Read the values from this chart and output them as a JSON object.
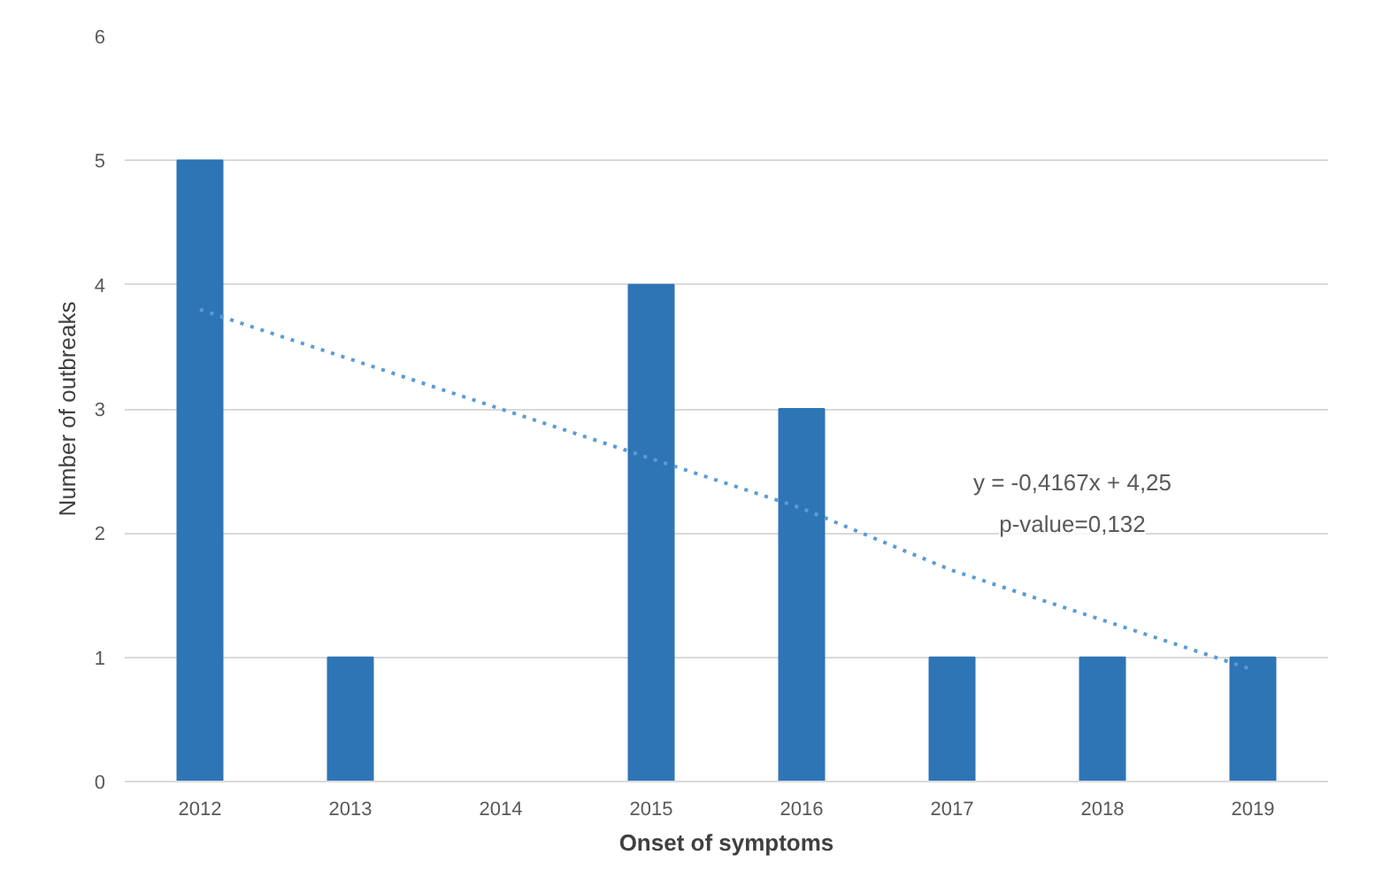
{
  "chart_data": {
    "type": "bar",
    "xlabel": "Onset of symptoms",
    "ylabel": "Number of outbreaks",
    "categories": [
      "2012",
      "2013",
      "2014",
      "2015",
      "2016",
      "2017",
      "2018",
      "2019"
    ],
    "series": [
      {
        "color": "#2e75b6",
        "values": [
          5,
          1,
          0,
          4,
          3,
          1,
          1,
          1
        ]
      },
      {
        "type": "line",
        "color": "#5b9bd5",
        "line_style": "dotted",
        "values": [
          3.8,
          3.4,
          3.0,
          2.6,
          2.2,
          1.7,
          1.3,
          0.9
        ]
      }
    ],
    "annotations": [
      "y = -0,4167x + 4,25",
      "p-value=0,132"
    ],
    "ylim": [
      0,
      6
    ],
    "yticks": [
      0,
      1,
      2,
      3,
      4,
      5,
      6
    ],
    "grid": "y"
  }
}
